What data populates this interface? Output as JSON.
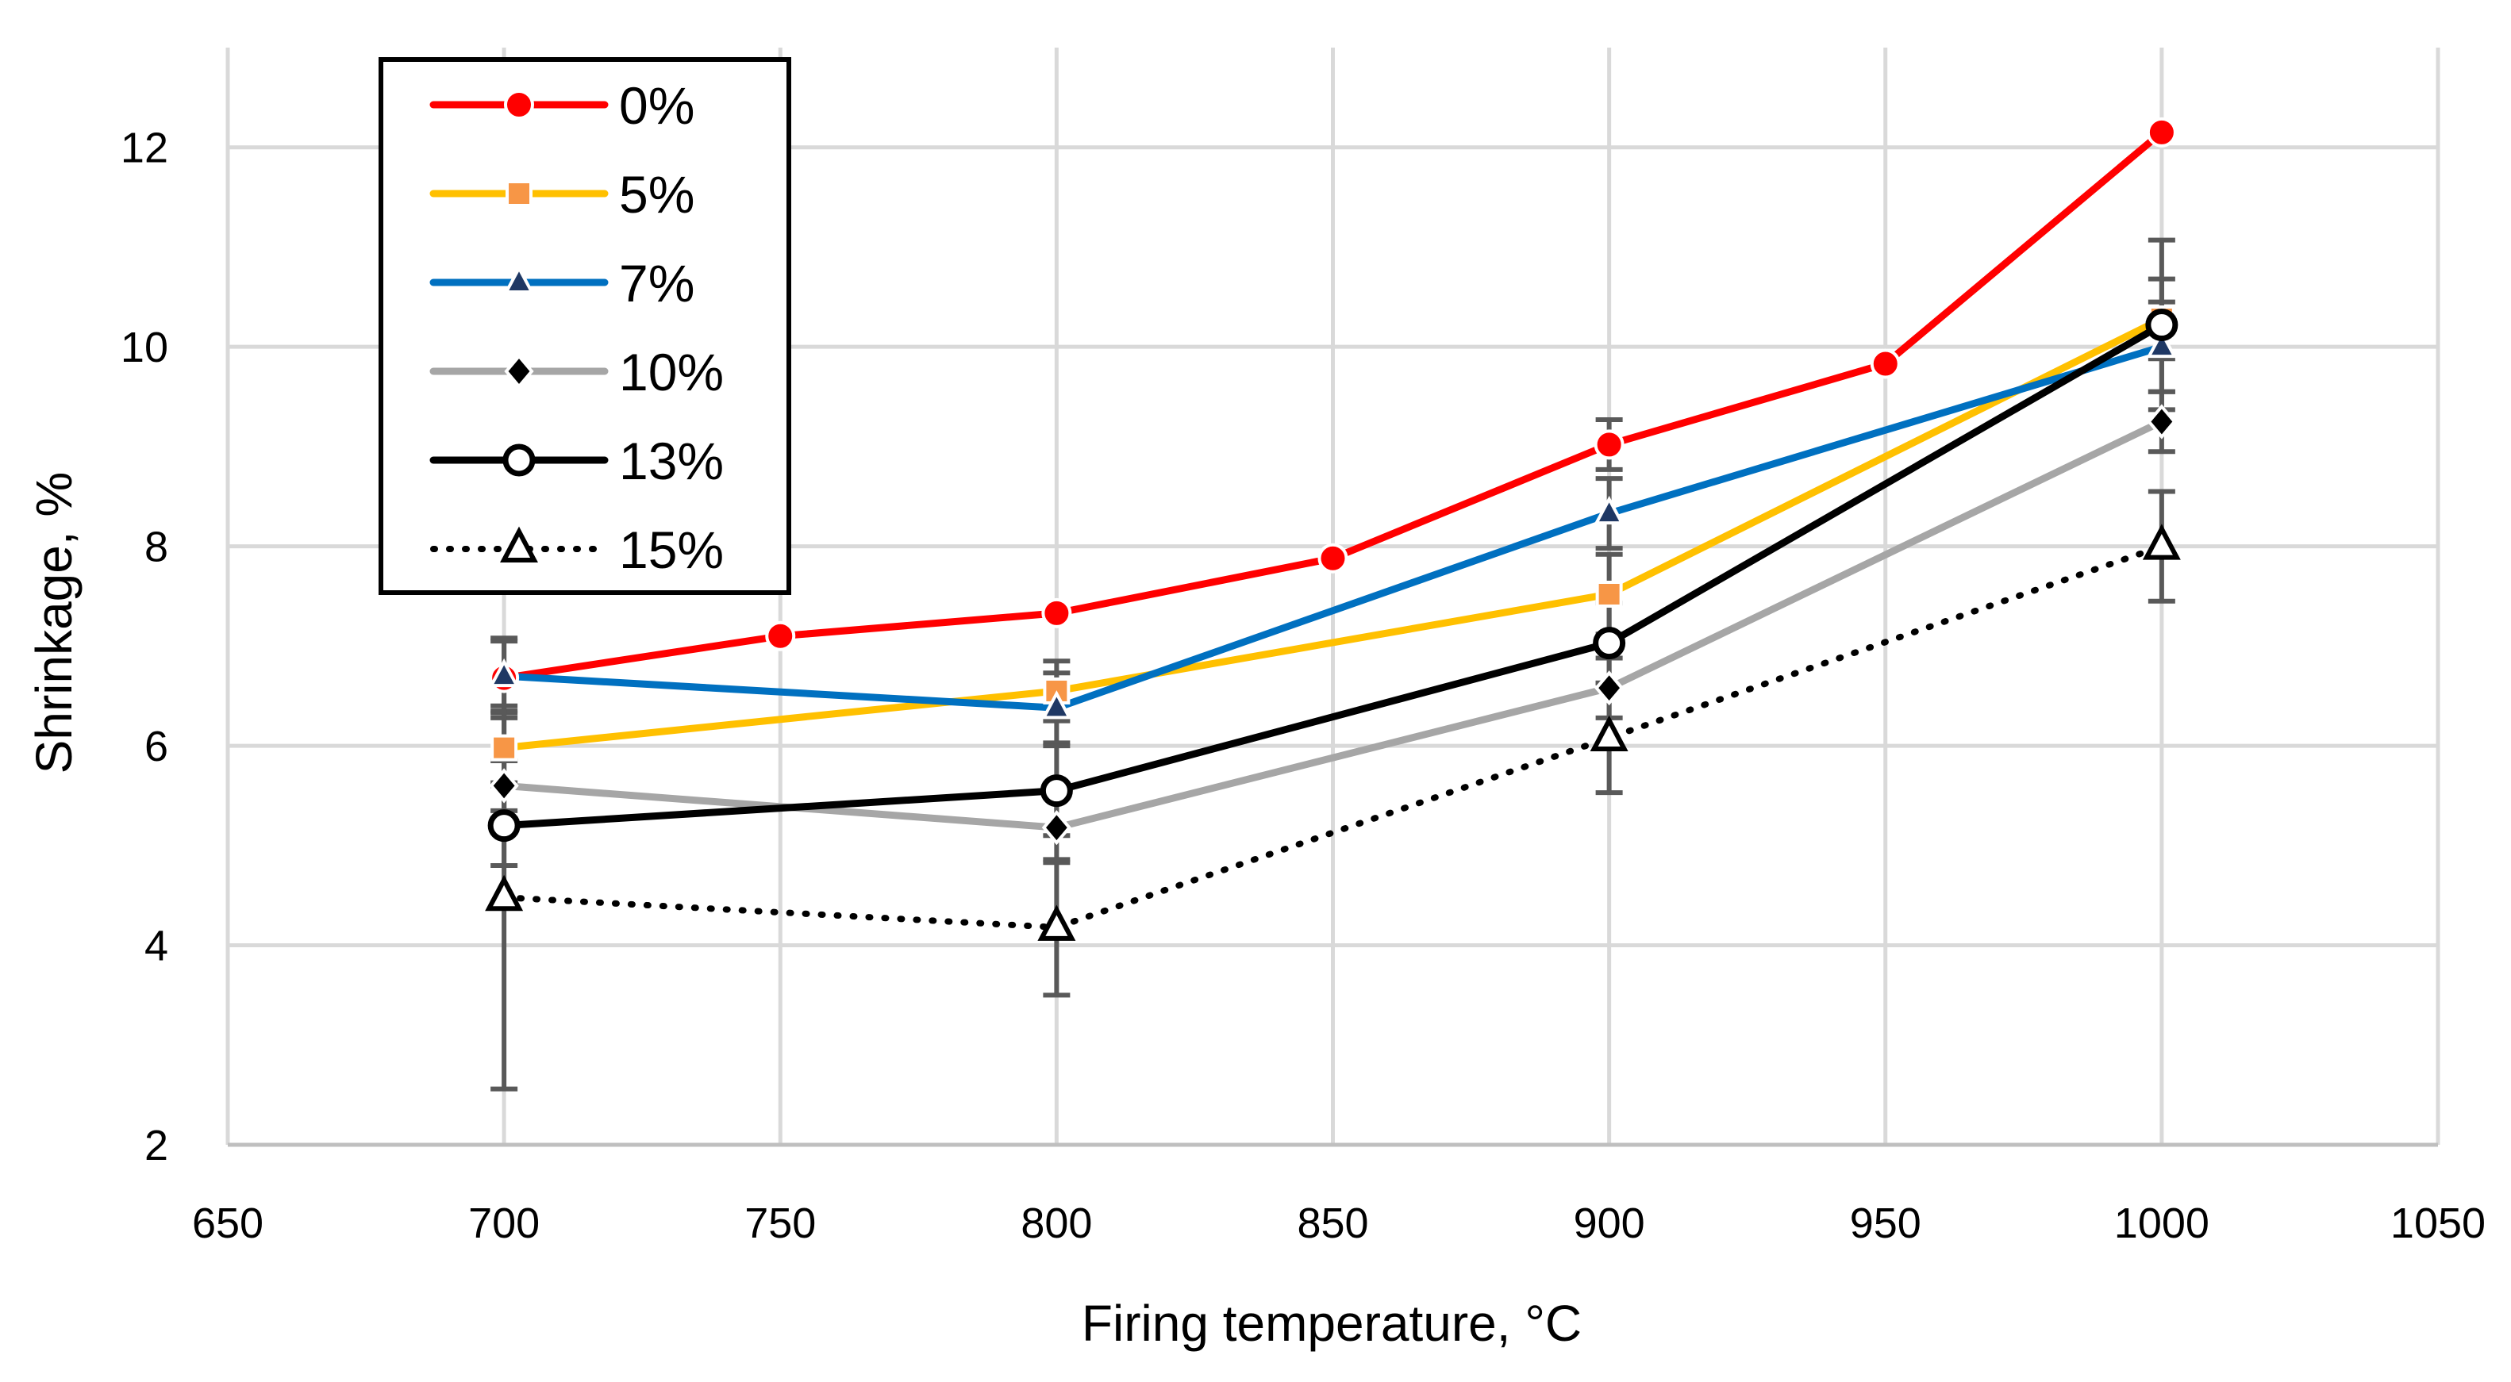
{
  "chart_data": {
    "type": "line",
    "title": "",
    "xlabel": "Firing temperature, °C",
    "ylabel": "Shrinkage, %",
    "xlim": [
      650,
      1050
    ],
    "ylim": [
      2,
      13
    ],
    "xticks": [
      "650",
      "700",
      "750",
      "800",
      "850",
      "900",
      "950",
      "1000",
      "1050"
    ],
    "yticks": [
      "2",
      "4",
      "6",
      "8",
      "10",
      "12"
    ],
    "grid": true,
    "legend_position": "top-left",
    "series": [
      {
        "name": "0%",
        "color": "#ff0000",
        "marker": "circle",
        "line": "solid",
        "x": [
          700,
          750,
          800,
          850,
          900,
          950,
          1000
        ],
        "values": [
          6.68,
          7.1,
          7.33,
          7.88,
          9.02,
          9.83,
          12.15
        ],
        "errors": [
          0.4,
          0,
          0,
          0,
          0.25,
          0,
          0
        ]
      },
      {
        "name": "5%",
        "color": "#ffc000",
        "marker": "square",
        "marker_color": "#f79646",
        "line": "solid",
        "x": [
          700,
          800,
          900,
          1000
        ],
        "values": [
          5.98,
          6.55,
          7.52,
          10.28
        ],
        "errors": [
          0.35,
          0.3,
          0.4,
          0.4
        ]
      },
      {
        "name": "7%",
        "color": "#0070c0",
        "marker": "triangle",
        "marker_color": "#1f3864",
        "line": "solid",
        "x": [
          700,
          800,
          900,
          1000
        ],
        "values": [
          6.7,
          6.38,
          8.33,
          10.0
        ],
        "errors": [
          0.35,
          0.35,
          0.35,
          0.45
        ]
      },
      {
        "name": "10%",
        "color": "#a6a6a6",
        "marker": "diamond",
        "marker_color": "#000000",
        "line": "solid",
        "x": [
          700,
          800,
          900,
          1000
        ],
        "values": [
          5.6,
          5.18,
          6.58,
          9.25
        ],
        "errors": [
          0.25,
          0.35,
          0.3,
          0.3
        ]
      },
      {
        "name": "13%",
        "color": "#000000",
        "marker": "open-circle",
        "line": "solid",
        "x": [
          700,
          800,
          900,
          1000
        ],
        "values": [
          5.2,
          5.55,
          7.03,
          10.22
        ],
        "errors": [
          0.4,
          0.45,
          0.4,
          0.85
        ]
      },
      {
        "name": "15%",
        "color": "#000000",
        "marker": "open-triangle",
        "line": "dotted",
        "x": [
          700,
          800,
          900,
          1000
        ],
        "values": [
          4.48,
          4.18,
          6.08,
          8.0
        ],
        "errors": [
          1.92,
          0.68,
          0.55,
          0.55
        ]
      }
    ]
  }
}
